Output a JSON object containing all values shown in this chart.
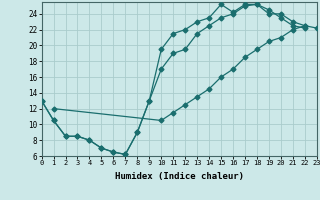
{
  "xlabel": "Humidex (Indice chaleur)",
  "bg_color": "#cce8e8",
  "grid_color": "#aacccc",
  "line_color": "#1a6e6e",
  "line1_x": [
    0,
    1,
    2,
    3,
    4,
    5,
    6,
    7,
    8,
    9,
    10,
    11,
    12,
    13,
    14,
    15,
    16,
    17,
    18,
    19,
    20,
    21,
    22
  ],
  "line1_y": [
    13,
    10.5,
    8.5,
    8.5,
    8.0,
    7.0,
    6.5,
    6.2,
    9.0,
    13.0,
    19.5,
    21.5,
    22.0,
    23.0,
    23.5,
    25.2,
    24.2,
    25.2,
    25.2,
    24.0,
    24.0,
    23.0,
    22.5
  ],
  "line2_x": [
    0,
    1,
    2,
    3,
    4,
    5,
    6,
    7,
    8,
    9,
    10,
    11,
    12,
    13,
    14,
    15,
    16,
    17,
    18,
    19,
    20,
    21,
    22
  ],
  "line2_y": [
    13,
    10.5,
    8.5,
    8.5,
    8.0,
    7.0,
    6.5,
    6.2,
    9.0,
    13.0,
    17.0,
    19.0,
    19.5,
    21.5,
    22.5,
    23.5,
    24.0,
    25.0,
    25.2,
    24.5,
    23.5,
    22.5,
    22.2
  ],
  "line3_x": [
    1,
    10,
    11,
    12,
    13,
    14,
    15,
    16,
    17,
    18,
    19,
    20,
    21,
    22,
    23
  ],
  "line3_y": [
    12,
    10.5,
    11.5,
    12.5,
    13.5,
    14.5,
    16.0,
    17.0,
    18.5,
    19.5,
    20.5,
    21.0,
    22.0,
    22.5,
    22.2
  ],
  "xlim": [
    0,
    23
  ],
  "ylim": [
    6,
    25.5
  ],
  "yticks": [
    6,
    8,
    10,
    12,
    14,
    16,
    18,
    20,
    22,
    24
  ],
  "xticks": [
    0,
    1,
    2,
    3,
    4,
    5,
    6,
    7,
    8,
    9,
    10,
    11,
    12,
    13,
    14,
    15,
    16,
    17,
    18,
    19,
    20,
    21,
    22,
    23
  ]
}
